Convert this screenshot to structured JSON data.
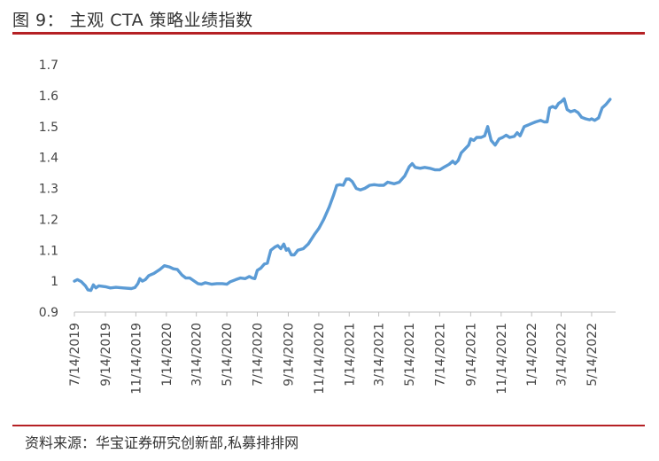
{
  "header": {
    "title": "图 9：  主观 CTA 策略业绩指数"
  },
  "footer": {
    "source": "资料来源：华宝证券研究创新部,私募排排网"
  },
  "colors": {
    "line": "#5b9bd5",
    "rule": "#b52024",
    "axis": "#bfbfbf"
  },
  "chart_data": {
    "type": "line",
    "title": "",
    "xlabel": "",
    "ylabel": "",
    "ylim": [
      0.9,
      1.7
    ],
    "yticks": [
      "0.9",
      "1",
      "1.1",
      "1.2",
      "1.3",
      "1.4",
      "1.5",
      "1.6",
      "1.7"
    ],
    "xticks": [
      "7/14/2019",
      "9/14/2019",
      "11/14/2019",
      "1/14/2020",
      "3/14/2020",
      "5/14/2020",
      "7/14/2020",
      "9/14/2020",
      "11/14/2020",
      "1/14/2021",
      "3/14/2021",
      "5/14/2021",
      "7/14/2021",
      "9/14/2021",
      "11/14/2021",
      "1/14/2022",
      "3/14/2022",
      "5/14/2022"
    ],
    "grid": false,
    "legend": "none",
    "series": [
      {
        "points": [
          [
            "2019-07-14",
            1.0
          ],
          [
            "2019-07-20",
            1.005
          ],
          [
            "2019-07-28",
            0.998
          ],
          [
            "2019-08-05",
            0.985
          ],
          [
            "2019-08-10",
            0.972
          ],
          [
            "2019-08-16",
            0.97
          ],
          [
            "2019-08-21",
            0.988
          ],
          [
            "2019-08-26",
            0.978
          ],
          [
            "2019-09-01",
            0.985
          ],
          [
            "2019-09-14",
            0.982
          ],
          [
            "2019-09-24",
            0.978
          ],
          [
            "2019-10-05",
            0.98
          ],
          [
            "2019-10-20",
            0.978
          ],
          [
            "2019-11-05",
            0.976
          ],
          [
            "2019-11-12",
            0.979
          ],
          [
            "2019-11-18",
            0.992
          ],
          [
            "2019-11-22",
            1.008
          ],
          [
            "2019-11-27",
            1.0
          ],
          [
            "2019-12-03",
            1.005
          ],
          [
            "2019-12-10",
            1.018
          ],
          [
            "2019-12-20",
            1.025
          ],
          [
            "2020-01-01",
            1.038
          ],
          [
            "2020-01-10",
            1.05
          ],
          [
            "2020-01-20",
            1.046
          ],
          [
            "2020-01-28",
            1.04
          ],
          [
            "2020-02-05",
            1.038
          ],
          [
            "2020-02-14",
            1.02
          ],
          [
            "2020-02-22",
            1.01
          ],
          [
            "2020-03-01",
            1.01
          ],
          [
            "2020-03-10",
            1.0
          ],
          [
            "2020-03-17",
            0.992
          ],
          [
            "2020-03-24",
            0.99
          ],
          [
            "2020-04-01",
            0.995
          ],
          [
            "2020-04-14",
            0.99
          ],
          [
            "2020-04-24",
            0.992
          ],
          [
            "2020-05-05",
            0.992
          ],
          [
            "2020-05-14",
            0.99
          ],
          [
            "2020-05-21",
            0.998
          ],
          [
            "2020-06-01",
            1.005
          ],
          [
            "2020-06-10",
            1.01
          ],
          [
            "2020-06-20",
            1.008
          ],
          [
            "2020-06-28",
            1.015
          ],
          [
            "2020-07-04",
            1.01
          ],
          [
            "2020-07-09",
            1.008
          ],
          [
            "2020-07-14",
            1.035
          ],
          [
            "2020-07-21",
            1.042
          ],
          [
            "2020-07-28",
            1.055
          ],
          [
            "2020-08-03",
            1.058
          ],
          [
            "2020-08-10",
            1.1
          ],
          [
            "2020-08-18",
            1.11
          ],
          [
            "2020-08-24",
            1.115
          ],
          [
            "2020-08-30",
            1.105
          ],
          [
            "2020-09-05",
            1.12
          ],
          [
            "2020-09-10",
            1.1
          ],
          [
            "2020-09-14",
            1.105
          ],
          [
            "2020-09-20",
            1.085
          ],
          [
            "2020-09-26",
            1.085
          ],
          [
            "2020-10-03",
            1.1
          ],
          [
            "2020-10-14",
            1.105
          ],
          [
            "2020-10-24",
            1.12
          ],
          [
            "2020-11-05",
            1.15
          ],
          [
            "2020-11-14",
            1.17
          ],
          [
            "2020-11-24",
            1.2
          ],
          [
            "2020-12-05",
            1.24
          ],
          [
            "2020-12-14",
            1.28
          ],
          [
            "2020-12-20",
            1.31
          ],
          [
            "2020-12-26",
            1.312
          ],
          [
            "2021-01-02",
            1.31
          ],
          [
            "2021-01-08",
            1.33
          ],
          [
            "2021-01-14",
            1.33
          ],
          [
            "2021-01-20",
            1.322
          ],
          [
            "2021-01-28",
            1.3
          ],
          [
            "2021-02-05",
            1.295
          ],
          [
            "2021-02-14",
            1.3
          ],
          [
            "2021-02-24",
            1.31
          ],
          [
            "2021-03-05",
            1.312
          ],
          [
            "2021-03-14",
            1.31
          ],
          [
            "2021-03-24",
            1.31
          ],
          [
            "2021-04-01",
            1.32
          ],
          [
            "2021-04-14",
            1.315
          ],
          [
            "2021-04-24",
            1.32
          ],
          [
            "2021-05-05",
            1.34
          ],
          [
            "2021-05-14",
            1.37
          ],
          [
            "2021-05-20",
            1.38
          ],
          [
            "2021-05-26",
            1.368
          ],
          [
            "2021-06-05",
            1.365
          ],
          [
            "2021-06-14",
            1.368
          ],
          [
            "2021-06-24",
            1.365
          ],
          [
            "2021-07-05",
            1.36
          ],
          [
            "2021-07-14",
            1.36
          ],
          [
            "2021-07-24",
            1.37
          ],
          [
            "2021-08-02",
            1.378
          ],
          [
            "2021-08-09",
            1.388
          ],
          [
            "2021-08-14",
            1.38
          ],
          [
            "2021-08-20",
            1.39
          ],
          [
            "2021-08-26",
            1.415
          ],
          [
            "2021-09-01",
            1.425
          ],
          [
            "2021-09-10",
            1.44
          ],
          [
            "2021-09-14",
            1.46
          ],
          [
            "2021-09-20",
            1.455
          ],
          [
            "2021-09-26",
            1.465
          ],
          [
            "2021-10-05",
            1.465
          ],
          [
            "2021-10-12",
            1.47
          ],
          [
            "2021-10-18",
            1.5
          ],
          [
            "2021-10-25",
            1.455
          ],
          [
            "2021-11-02",
            1.44
          ],
          [
            "2021-11-10",
            1.46
          ],
          [
            "2021-11-17",
            1.465
          ],
          [
            "2021-11-24",
            1.472
          ],
          [
            "2021-12-01",
            1.465
          ],
          [
            "2021-12-10",
            1.468
          ],
          [
            "2021-12-16",
            1.48
          ],
          [
            "2021-12-22",
            1.47
          ],
          [
            "2021-12-30",
            1.5
          ],
          [
            "2022-01-07",
            1.505
          ],
          [
            "2022-01-14",
            1.51
          ],
          [
            "2022-01-22",
            1.515
          ],
          [
            "2022-02-01",
            1.52
          ],
          [
            "2022-02-08",
            1.515
          ],
          [
            "2022-02-14",
            1.515
          ],
          [
            "2022-02-19",
            1.56
          ],
          [
            "2022-02-25",
            1.565
          ],
          [
            "2022-03-03",
            1.56
          ],
          [
            "2022-03-09",
            1.575
          ],
          [
            "2022-03-14",
            1.58
          ],
          [
            "2022-03-20",
            1.59
          ],
          [
            "2022-03-26",
            1.555
          ],
          [
            "2022-04-02",
            1.548
          ],
          [
            "2022-04-10",
            1.552
          ],
          [
            "2022-04-17",
            1.545
          ],
          [
            "2022-04-24",
            1.53
          ],
          [
            "2022-05-02",
            1.525
          ],
          [
            "2022-05-10",
            1.522
          ],
          [
            "2022-05-14",
            1.525
          ],
          [
            "2022-05-20",
            1.52
          ],
          [
            "2022-05-28",
            1.528
          ],
          [
            "2022-06-04",
            1.56
          ],
          [
            "2022-06-12",
            1.572
          ],
          [
            "2022-06-20",
            1.588
          ]
        ]
      }
    ]
  }
}
